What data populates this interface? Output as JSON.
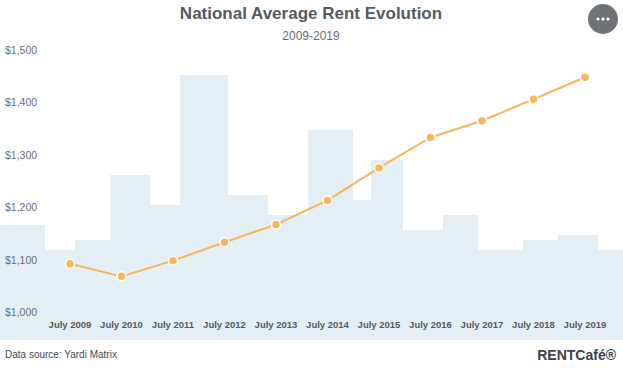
{
  "chart_data": {
    "type": "line",
    "title": "National Average Rent Evolution",
    "subtitle": "2009-2019",
    "categories": [
      "July 2009",
      "July 2010",
      "July 2011",
      "July 2012",
      "July 2013",
      "July 2014",
      "July 2015",
      "July 2016",
      "July 2017",
      "July 2018",
      "July 2019"
    ],
    "values": [
      1092,
      1068,
      1098,
      1133,
      1167,
      1213,
      1275,
      1333,
      1365,
      1406,
      1448
    ],
    "color": "#f6b65e",
    "marker": "circle",
    "ylim": [
      1000,
      1500
    ],
    "yticks": [
      {
        "value": 1000,
        "label": "$1,000"
      },
      {
        "value": 1100,
        "label": "$1,100"
      },
      {
        "value": 1200,
        "label": "$1,200"
      },
      {
        "value": 1300,
        "label": "$1,300"
      },
      {
        "value": 1400,
        "label": "$1,400"
      },
      {
        "value": 1500,
        "label": "$1,500"
      }
    ],
    "grid": false,
    "source": "Data source: Yardi Matrix",
    "logo": "RENTCafé®"
  }
}
